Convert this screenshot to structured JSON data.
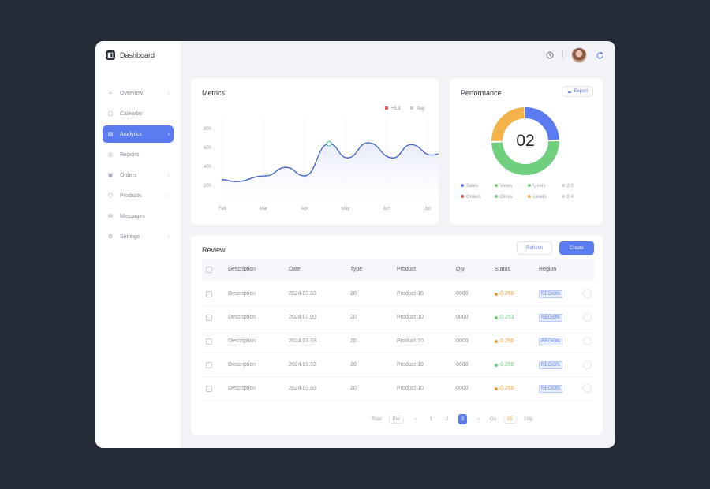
{
  "app": {
    "name": "Dashboard"
  },
  "sidebar": {
    "items": [
      {
        "label": "Overview",
        "icon": "chart-icon",
        "glyph": "≈",
        "chevron": "›",
        "active": false
      },
      {
        "label": "Calendar",
        "icon": "calendar-icon",
        "glyph": "▢",
        "chevron": "",
        "active": false
      },
      {
        "label": "Analytics",
        "icon": "analytics-icon",
        "glyph": "▤",
        "chevron": "›",
        "active": true
      },
      {
        "label": "Reports",
        "icon": "reports-icon",
        "glyph": "◎",
        "chevron": "",
        "active": false
      },
      {
        "label": "Orders",
        "icon": "orders-icon",
        "glyph": "▣",
        "chevron": "›",
        "active": false
      },
      {
        "label": "Products",
        "icon": "products-icon",
        "glyph": "⬡",
        "chevron": "›",
        "active": false
      },
      {
        "label": "Messages",
        "icon": "messages-icon",
        "glyph": "✉",
        "chevron": "",
        "active": false
      },
      {
        "label": "Settings",
        "icon": "settings-icon",
        "glyph": "⚙",
        "chevron": "›",
        "active": false
      }
    ]
  },
  "topbar": {
    "clock_icon": "clock-icon",
    "refresh_icon": "refresh-icon"
  },
  "line_card": {
    "title": "Metrics",
    "legend": [
      {
        "label": "+5.3",
        "color": "#e5534b"
      },
      {
        "label": "Avg",
        "color": "#c9ccd3"
      }
    ]
  },
  "chart_data": {
    "type": "area",
    "title": "Metrics",
    "categories": [
      "Feb",
      "Mar",
      "Apr",
      "May",
      "Jun",
      "Jul"
    ],
    "y_ticks": [
      "800",
      "600",
      "400",
      "200"
    ],
    "ylim": [
      100,
      900
    ],
    "x": [
      0,
      0.3,
      1.05,
      1.55,
      2.0,
      2.6,
      3.05,
      3.55,
      4.15,
      4.6,
      5.1,
      5.4
    ],
    "values": [
      260,
      240,
      300,
      390,
      300,
      640,
      490,
      650,
      490,
      630,
      520,
      540
    ],
    "color": "#3d5fc9",
    "fill": "#e6ebfb",
    "grid": true
  },
  "donut_card": {
    "title": "Performance",
    "button": "Export",
    "center": "02",
    "segments": [
      {
        "value": 25,
        "color": "#5b7cf0"
      },
      {
        "value": 50,
        "color": "#6fcf7f"
      },
      {
        "value": 25,
        "color": "#f4b24a"
      }
    ],
    "legend": [
      {
        "label": "Sales",
        "color": "#5b7cf0"
      },
      {
        "label": "Views",
        "color": "#6fcf7f"
      },
      {
        "label": "Users",
        "color": "#6fcf7f"
      },
      {
        "label": "2 0",
        "color": "#c9ccd3"
      },
      {
        "label": "Orders",
        "color": "#e5534b"
      },
      {
        "label": "Clicks",
        "color": "#6fcf7f"
      },
      {
        "label": "Leads",
        "color": "#f4b24a"
      },
      {
        "label": "2 4",
        "color": "#c9ccd3"
      }
    ]
  },
  "table": {
    "title": "Review",
    "btn_secondary": "Refresh",
    "btn_primary": "Create",
    "columns": [
      "Description",
      "Date",
      "Type",
      "Product",
      "Qty",
      "Status",
      "Region"
    ],
    "rows": [
      {
        "desc": "Description",
        "date": "2024.03.03",
        "type": "20",
        "product": "Product 10",
        "qty": "0000",
        "status": "0.250",
        "status_color": "#f4a03a",
        "region": "REGION"
      },
      {
        "desc": "Description",
        "date": "2024.03.03",
        "type": "20",
        "product": "Product 10",
        "qty": "0000",
        "status": "0.253",
        "status_color": "#6fcf7f",
        "region": "REGION"
      },
      {
        "desc": "Description",
        "date": "2024.03.03",
        "type": "20",
        "product": "Product 10",
        "qty": "0000",
        "status": "0.250",
        "status_color": "#f4a03a",
        "region": "REGION"
      },
      {
        "desc": "Description",
        "date": "2024.03.03",
        "type": "20",
        "product": "Product 10",
        "qty": "0000",
        "status": "0.250",
        "status_color": "#6fcf7f",
        "region": "REGION"
      },
      {
        "desc": "Description",
        "date": "2024.03.03",
        "type": "20",
        "product": "Product 10",
        "qty": "0000",
        "status": "0.250",
        "status_color": "#f4a03a",
        "region": "REGION"
      }
    ]
  },
  "pagination": {
    "total_label": "Total",
    "page_size": "Per",
    "pages": [
      "‹",
      "1",
      "2",
      "3",
      "›"
    ],
    "current": "3",
    "goto_label": "Go",
    "goto_value": "05",
    "end_label": "10/p"
  }
}
